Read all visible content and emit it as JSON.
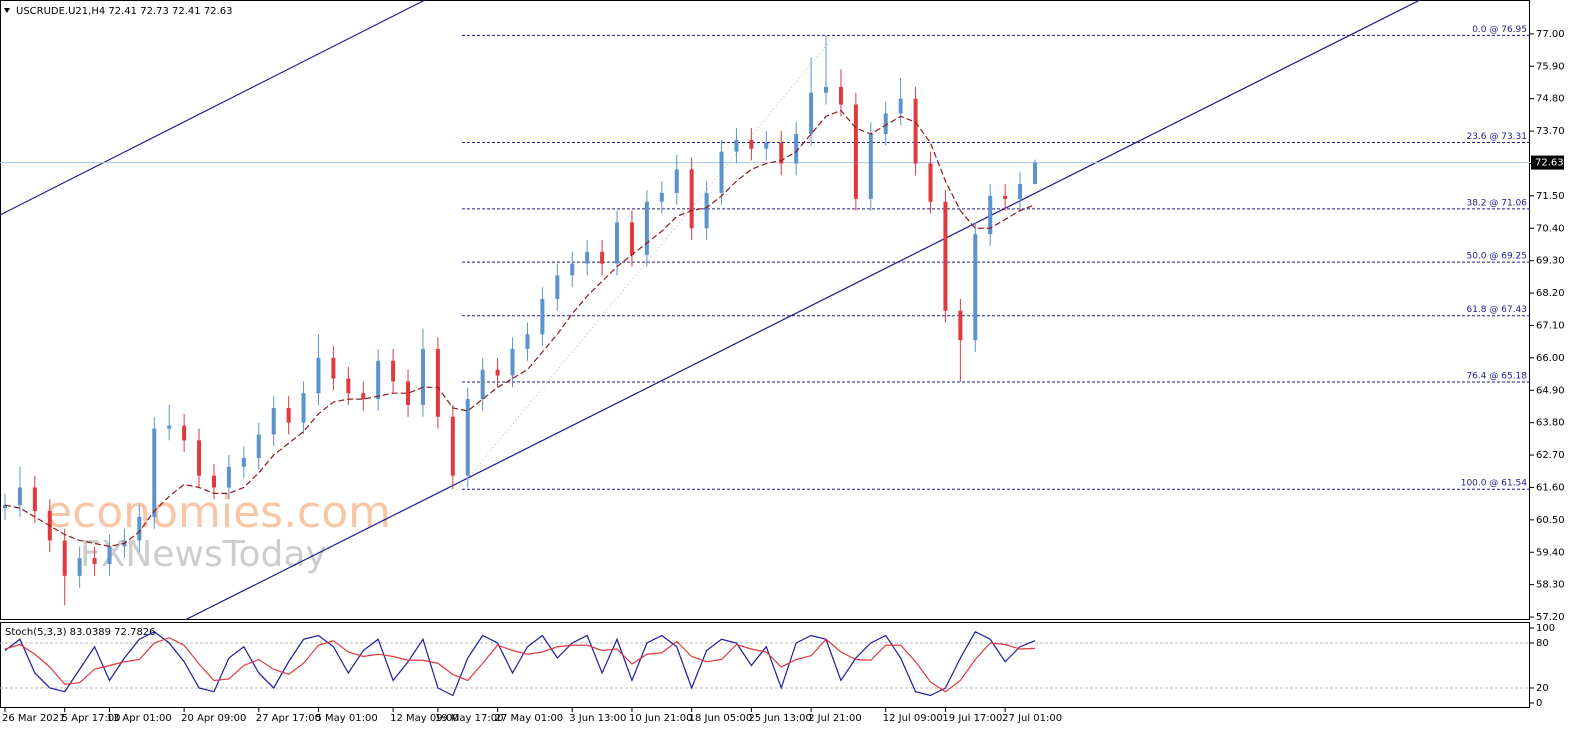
{
  "chart_data": [
    {
      "type": "candlestick",
      "title": "USCRUDE.U21,H4  72.41 72.73 72.41 72.63",
      "categories": [
        "26 Mar 2021",
        null,
        null,
        null,
        "5 Apr 17:00",
        null,
        null,
        "13 Apr 01:00",
        null,
        null,
        null,
        null,
        "20 Apr 09:00",
        null,
        null,
        null,
        null,
        "27 Apr 17:00",
        null,
        null,
        null,
        "5 May 01:00",
        null,
        null,
        null,
        null,
        "12 May 09:00",
        null,
        null,
        "19 May 17:00",
        null,
        null,
        null,
        "27 May 01:00",
        null,
        null,
        null,
        null,
        "3 Jun 13:00",
        null,
        null,
        null,
        "10 Jun 21:00",
        null,
        null,
        null,
        "18 Jun 05:00",
        null,
        null,
        null,
        "25 Jun 13:00",
        null,
        null,
        null,
        "2 Jul 21:00",
        null,
        null,
        null,
        null,
        "12 Jul 09:00",
        null,
        null,
        null,
        "19 Jul 17:00",
        null,
        null,
        null,
        "27 Jul 01:00",
        null,
        null
      ],
      "open": [
        60.9,
        61.0,
        61.6,
        60.8,
        59.8,
        58.6,
        59.2,
        59.0,
        59.6,
        59.8,
        60.6,
        63.6,
        63.7,
        63.2,
        62.0,
        61.6,
        62.3,
        62.6,
        63.4,
        64.3,
        63.8,
        64.8,
        66.0,
        65.3,
        64.8,
        64.6,
        65.9,
        65.2,
        64.4,
        66.3,
        64.0,
        62.0,
        64.6,
        65.6,
        65.4,
        66.3,
        66.8,
        68.0,
        68.8,
        69.2,
        69.6,
        69.2,
        70.6,
        69.5,
        71.3,
        71.6,
        72.4,
        70.4,
        71.6,
        73.0,
        73.4,
        73.1,
        73.3,
        72.6,
        73.6,
        75.0,
        75.2,
        74.6,
        71.4,
        73.6,
        74.3,
        74.8,
        72.6,
        71.3,
        67.6,
        66.6,
        70.2,
        71.5,
        71.4,
        71.9
      ],
      "high": [
        61.4,
        62.3,
        62.0,
        61.2,
        60.2,
        59.6,
        59.6,
        60.0,
        60.2,
        61.0,
        64.0,
        64.4,
        64.1,
        63.6,
        62.4,
        62.7,
        63.0,
        63.8,
        64.7,
        64.7,
        65.2,
        66.8,
        66.4,
        65.7,
        65.2,
        66.3,
        66.3,
        65.6,
        67.0,
        66.7,
        64.4,
        65.0,
        66.0,
        66.0,
        66.7,
        67.2,
        68.4,
        69.2,
        69.6,
        70.0,
        70.0,
        71.0,
        71.0,
        71.7,
        72.0,
        72.9,
        72.8,
        72.0,
        73.4,
        73.8,
        73.8,
        73.7,
        73.7,
        74.0,
        76.2,
        76.95,
        75.8,
        75.0,
        74.0,
        74.7,
        75.5,
        75.2,
        73.0,
        71.7,
        68.0,
        70.6,
        71.9,
        71.9,
        72.3,
        72.73
      ],
      "low": [
        60.5,
        60.6,
        60.4,
        59.4,
        57.6,
        58.2,
        58.6,
        58.6,
        59.2,
        59.4,
        60.2,
        63.2,
        62.8,
        61.6,
        61.2,
        61.2,
        61.9,
        62.2,
        63.0,
        63.4,
        63.4,
        64.4,
        64.9,
        64.4,
        64.2,
        64.2,
        64.8,
        64.0,
        64.0,
        63.6,
        61.54,
        61.6,
        64.2,
        65.0,
        65.0,
        65.9,
        66.4,
        67.6,
        68.4,
        68.8,
        68.8,
        68.8,
        69.1,
        69.1,
        70.9,
        71.2,
        70.0,
        70.0,
        71.2,
        72.6,
        72.7,
        72.7,
        72.2,
        72.2,
        73.2,
        74.6,
        74.2,
        71.0,
        71.0,
        73.2,
        73.9,
        72.2,
        70.9,
        67.2,
        65.18,
        66.2,
        69.8,
        71.0,
        71.0,
        71.9
      ],
      "close": [
        61.0,
        61.6,
        60.8,
        59.8,
        58.6,
        59.2,
        59.0,
        59.6,
        59.8,
        60.6,
        63.6,
        63.7,
        63.2,
        62.0,
        61.6,
        62.3,
        62.6,
        63.4,
        64.3,
        63.8,
        64.8,
        66.0,
        65.3,
        64.8,
        64.6,
        65.9,
        65.2,
        64.4,
        66.3,
        64.0,
        62.0,
        64.6,
        65.6,
        65.4,
        66.3,
        66.8,
        68.0,
        68.8,
        69.2,
        69.6,
        69.2,
        70.6,
        69.5,
        71.3,
        71.6,
        72.4,
        70.4,
        71.6,
        73.0,
        73.4,
        73.1,
        73.3,
        72.6,
        73.6,
        75.0,
        75.2,
        74.6,
        71.4,
        73.6,
        74.3,
        74.8,
        72.6,
        71.3,
        67.6,
        66.6,
        70.2,
        71.5,
        71.4,
        71.9,
        72.63
      ],
      "ma": {
        "color": "#8b1a1a",
        "values": [
          61.0,
          60.9,
          60.6,
          60.3,
          60.0,
          59.8,
          59.7,
          59.6,
          59.7,
          60.1,
          60.8,
          61.3,
          61.7,
          61.6,
          61.4,
          61.4,
          61.6,
          62.1,
          62.7,
          63.1,
          63.5,
          64.1,
          64.5,
          64.6,
          64.6,
          64.7,
          64.8,
          64.8,
          65.0,
          65.0,
          64.3,
          64.2,
          64.6,
          65.0,
          65.3,
          65.6,
          66.2,
          66.8,
          67.5,
          68.1,
          68.6,
          69.1,
          69.5,
          69.9,
          70.3,
          70.8,
          71.0,
          71.1,
          71.5,
          72.0,
          72.4,
          72.6,
          72.7,
          73.0,
          73.6,
          74.2,
          74.4,
          73.8,
          73.6,
          73.9,
          74.2,
          74.0,
          73.3,
          72.0,
          71.0,
          70.4,
          70.4,
          70.7,
          71.0,
          71.2
        ]
      },
      "up_color": "#5b93cf",
      "down_color": "#e0393e",
      "ylim": [
        57.1,
        78.15
      ],
      "yticks": [
        {
          "value": 57.2,
          "label": "57.20"
        },
        {
          "value": 58.3,
          "label": "58.30"
        },
        {
          "value": 59.4,
          "label": "59.40"
        },
        {
          "value": 60.5,
          "label": "60.50"
        },
        {
          "value": 61.6,
          "label": "61.60"
        },
        {
          "value": 62.7,
          "label": "62.70"
        },
        {
          "value": 63.8,
          "label": "63.80"
        },
        {
          "value": 64.9,
          "label": "64.90"
        },
        {
          "value": 66.0,
          "label": "66.00"
        },
        {
          "value": 67.1,
          "label": "67.10"
        },
        {
          "value": 68.2,
          "label": "68.20"
        },
        {
          "value": 69.3,
          "label": "69.30"
        },
        {
          "value": 70.4,
          "label": "70.40"
        },
        {
          "value": 71.5,
          "label": "71.50"
        },
        {
          "value": 72.6,
          "label": "72.60"
        },
        {
          "value": 73.7,
          "label": "73.70"
        },
        {
          "value": 74.8,
          "label": "74.80"
        },
        {
          "value": 75.9,
          "label": "75.90"
        },
        {
          "value": 77.0,
          "label": "77.00"
        }
      ],
      "fib_levels": [
        {
          "value": 76.95,
          "label": "0.0 @ 76.95"
        },
        {
          "value": 73.31,
          "label": "23.6 @ 73.31"
        },
        {
          "value": 71.06,
          "label": "38.2 @ 71.06"
        },
        {
          "value": 69.25,
          "label": "50.0 @ 69.25"
        },
        {
          "value": 67.43,
          "label": "61.8 @ 67.43"
        },
        {
          "value": 65.18,
          "label": "76.4 @ 65.18"
        },
        {
          "value": 61.54,
          "label": "100.0 @ 61.54"
        }
      ],
      "fib_color": "#1c1c8c",
      "current_price": 72.63,
      "watermark": [
        "economies.com",
        "FXNewsToday"
      ]
    },
    {
      "type": "line",
      "title": "Stoch(5,3,3) 83.0389 72.7826",
      "series": [
        {
          "name": "Main",
          "color": "#1c1ca0",
          "values": [
            70,
            85,
            40,
            20,
            15,
            45,
            75,
            30,
            60,
            85,
            95,
            80,
            55,
            20,
            15,
            60,
            75,
            40,
            20,
            55,
            85,
            90,
            75,
            40,
            70,
            85,
            30,
            55,
            85,
            20,
            10,
            60,
            90,
            80,
            40,
            75,
            90,
            60,
            80,
            90,
            40,
            85,
            30,
            80,
            90,
            75,
            20,
            70,
            85,
            80,
            50,
            75,
            20,
            80,
            90,
            85,
            30,
            60,
            80,
            90,
            60,
            15,
            10,
            20,
            60,
            95,
            85,
            55,
            75,
            83.0389
          ]
        },
        {
          "name": "Signal",
          "color": "#e0393e",
          "values": [
            72,
            78,
            65,
            48,
            25,
            27,
            45,
            50,
            55,
            58,
            80,
            87,
            77,
            52,
            30,
            32,
            50,
            58,
            45,
            38,
            53,
            77,
            83,
            68,
            62,
            65,
            62,
            57,
            57,
            53,
            38,
            30,
            53,
            77,
            70,
            65,
            68,
            75,
            77,
            77,
            70,
            72,
            52,
            65,
            67,
            82,
            62,
            55,
            58,
            78,
            72,
            68,
            48,
            58,
            63,
            85,
            68,
            58,
            57,
            77,
            77,
            55,
            28,
            15,
            30,
            58,
            80,
            78,
            72,
            72.7826
          ]
        }
      ],
      "ylim": [
        -6.7,
        108
      ],
      "yticks": [
        100,
        80,
        20,
        0
      ],
      "levels": [
        80,
        20
      ]
    }
  ]
}
